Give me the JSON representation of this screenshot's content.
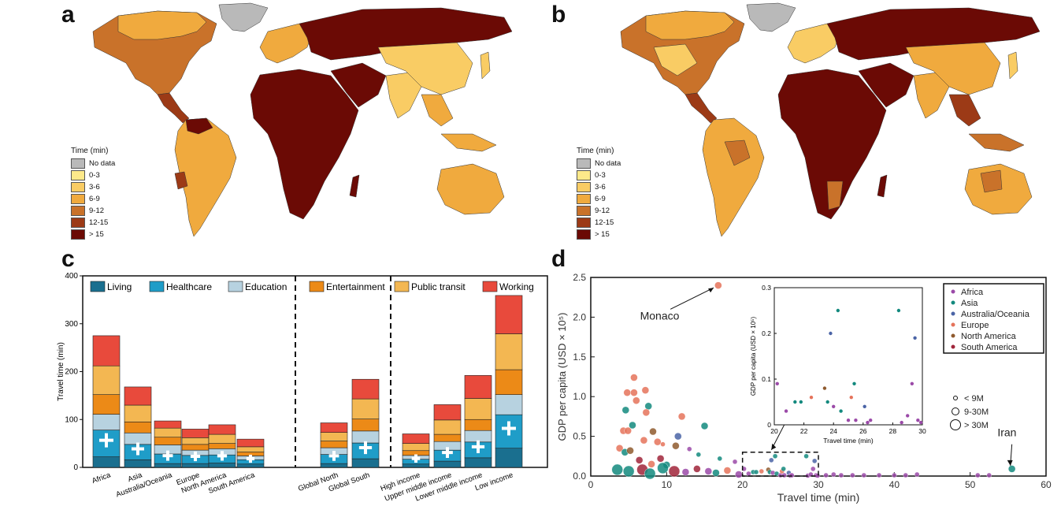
{
  "panels": {
    "a": "a",
    "b": "b",
    "c": "c",
    "d": "d"
  },
  "map_legend": {
    "title": "Time (min)",
    "items": [
      {
        "label": "No data",
        "color": "#b9b9b9"
      },
      {
        "label": "0-3",
        "color": "#fde98a"
      },
      {
        "label": "3-6",
        "color": "#f9cc64"
      },
      {
        "label": "6-9",
        "color": "#f0aa3e"
      },
      {
        "label": "9-12",
        "color": "#c9722a"
      },
      {
        "label": "12-15",
        "color": "#9c3a16"
      },
      {
        "label": "> 15",
        "color": "#6b0a05"
      }
    ]
  },
  "chart_data": [
    {
      "id": "c",
      "type": "bar",
      "stacked": true,
      "ylabel": "Travel time (min)",
      "ylim": [
        0,
        400
      ],
      "yticks": [
        0,
        100,
        200,
        300,
        400
      ],
      "categories": [
        "Africa",
        "Asia",
        "Australia/Oceania",
        "Europe",
        "North America",
        "South America",
        "Global North",
        "Global South",
        "High income",
        "Upper middle income",
        "Lower middle income",
        "Low income"
      ],
      "groups": [
        [
          0,
          5
        ],
        [
          6,
          7
        ],
        [
          8,
          11
        ]
      ],
      "series": [
        {
          "name": "Living",
          "color": "#1a6f8f",
          "values": [
            22,
            16,
            8,
            8,
            9,
            7,
            8,
            18,
            7,
            13,
            20,
            40
          ]
        },
        {
          "name": "Healthcare",
          "color": "#1f9dc8",
          "values": [
            56,
            32,
            20,
            17,
            17,
            9,
            19,
            33,
            10,
            23,
            33,
            70
          ]
        },
        {
          "name": "Education",
          "color": "#b7d2e0",
          "values": [
            33,
            24,
            19,
            11,
            13,
            8,
            14,
            25,
            8,
            18,
            24,
            42
          ]
        },
        {
          "name": "Entertainment",
          "color": "#ec8a17",
          "values": [
            41,
            23,
            16,
            12,
            11,
            8,
            14,
            25,
            10,
            15,
            23,
            52
          ]
        },
        {
          "name": "Public transit",
          "color": "#f3b752",
          "values": [
            60,
            35,
            19,
            14,
            19,
            11,
            18,
            42,
            15,
            30,
            44,
            75
          ]
        },
        {
          "name": "Working",
          "color": "#e84a3c",
          "values": [
            63,
            38,
            15,
            18,
            20,
            16,
            20,
            41,
            20,
            32,
            48,
            80
          ]
        }
      ]
    },
    {
      "id": "d",
      "type": "scatter",
      "xlabel": "Travel time (min)",
      "ylabel": "GDP per capita (USD × 10⁵)",
      "xlim": [
        0,
        60
      ],
      "ylim": [
        0,
        2.5
      ],
      "xticks": [
        0,
        10,
        20,
        30,
        40,
        50,
        60
      ],
      "yticks": [
        0.0,
        0.5,
        1.0,
        1.5,
        2.0,
        2.5
      ],
      "annotations": [
        {
          "text": "Monaco",
          "x": 16.8,
          "y": 2.4
        },
        {
          "text": "Iran",
          "x": 55.5,
          "y": 0.09
        }
      ],
      "regions": [
        {
          "name": "Africa",
          "color": "#9b4aa8"
        },
        {
          "name": "Asia",
          "color": "#13897e"
        },
        {
          "name": "Australia/Oceania",
          "color": "#4a64a6"
        },
        {
          "name": "Europe",
          "color": "#e5735b"
        },
        {
          "name": "North America",
          "color": "#8f5a2e"
        },
        {
          "name": "South America",
          "color": "#a0253a"
        }
      ],
      "size_legend": [
        "< 9M",
        "9-30M",
        "> 30M"
      ],
      "points": [
        {
          "x": 16.8,
          "y": 2.4,
          "r": "Europe",
          "s": 1
        },
        {
          "x": 55.5,
          "y": 0.09,
          "r": "Asia",
          "s": 1
        },
        {
          "x": 5.7,
          "y": 1.24,
          "r": "Europe",
          "s": 1
        },
        {
          "x": 4.8,
          "y": 1.05,
          "r": "Europe",
          "s": 1
        },
        {
          "x": 5.7,
          "y": 1.05,
          "r": "Europe",
          "s": 1
        },
        {
          "x": 7.2,
          "y": 1.08,
          "r": "Europe",
          "s": 1
        },
        {
          "x": 6.0,
          "y": 0.95,
          "r": "Europe",
          "s": 1
        },
        {
          "x": 7.6,
          "y": 0.88,
          "r": "Asia",
          "s": 1
        },
        {
          "x": 7.3,
          "y": 0.8,
          "r": "Europe",
          "s": 1
        },
        {
          "x": 4.6,
          "y": 0.83,
          "r": "Asia",
          "s": 1
        },
        {
          "x": 12.0,
          "y": 0.75,
          "r": "Europe",
          "s": 1
        },
        {
          "x": 15.0,
          "y": 0.63,
          "r": "Asia",
          "s": 1
        },
        {
          "x": 5.5,
          "y": 0.64,
          "r": "Asia",
          "s": 1
        },
        {
          "x": 4.3,
          "y": 0.57,
          "r": "Europe",
          "s": 1
        },
        {
          "x": 4.9,
          "y": 0.57,
          "r": "Europe",
          "s": 1
        },
        {
          "x": 8.2,
          "y": 0.56,
          "r": "North America",
          "s": 1
        },
        {
          "x": 11.5,
          "y": 0.5,
          "r": "Australia/Oceania",
          "s": 1
        },
        {
          "x": 7.0,
          "y": 0.45,
          "r": "Europe",
          "s": 1
        },
        {
          "x": 8.8,
          "y": 0.43,
          "r": "Europe",
          "s": 1
        },
        {
          "x": 9.5,
          "y": 0.4,
          "r": "Europe",
          "s": 0
        },
        {
          "x": 11.2,
          "y": 0.38,
          "r": "North America",
          "s": 1
        },
        {
          "x": 13.0,
          "y": 0.34,
          "r": "Africa",
          "s": 0
        },
        {
          "x": 14.2,
          "y": 0.27,
          "r": "Asia",
          "s": 0
        },
        {
          "x": 17.0,
          "y": 0.22,
          "r": "Asia",
          "s": 0
        },
        {
          "x": 19.0,
          "y": 0.18,
          "r": "Africa",
          "s": 0
        },
        {
          "x": 24.3,
          "y": 0.25,
          "r": "Asia",
          "s": 0
        },
        {
          "x": 3.8,
          "y": 0.35,
          "r": "Europe",
          "s": 1
        },
        {
          "x": 4.5,
          "y": 0.3,
          "r": "Asia",
          "s": 1
        },
        {
          "x": 5.2,
          "y": 0.32,
          "r": "North America",
          "s": 1
        },
        {
          "x": 6.4,
          "y": 0.2,
          "r": "South America",
          "s": 1
        },
        {
          "x": 8.0,
          "y": 0.15,
          "r": "Europe",
          "s": 1
        },
        {
          "x": 9.2,
          "y": 0.22,
          "r": "South America",
          "s": 1
        },
        {
          "x": 10.0,
          "y": 0.14,
          "r": "Asia",
          "s": 1
        },
        {
          "x": 3.5,
          "y": 0.08,
          "r": "Asia",
          "s": 2
        },
        {
          "x": 5.0,
          "y": 0.06,
          "r": "Asia",
          "s": 2
        },
        {
          "x": 6.8,
          "y": 0.08,
          "r": "South America",
          "s": 2
        },
        {
          "x": 7.8,
          "y": 0.03,
          "r": "Asia",
          "s": 2
        },
        {
          "x": 9.5,
          "y": 0.1,
          "r": "Asia",
          "s": 2
        },
        {
          "x": 11.0,
          "y": 0.06,
          "r": "South America",
          "s": 2
        },
        {
          "x": 12.5,
          "y": 0.05,
          "r": "Africa",
          "s": 1
        },
        {
          "x": 14.0,
          "y": 0.09,
          "r": "South America",
          "s": 1
        },
        {
          "x": 15.5,
          "y": 0.06,
          "r": "Africa",
          "s": 1
        },
        {
          "x": 16.5,
          "y": 0.04,
          "r": "Asia",
          "s": 1
        },
        {
          "x": 18.0,
          "y": 0.07,
          "r": "Europe",
          "s": 1
        },
        {
          "x": 19.5,
          "y": 0.02,
          "r": "Africa",
          "s": 1
        },
        {
          "x": 20.2,
          "y": 0.09,
          "r": "Africa",
          "s": 0
        },
        {
          "x": 20.8,
          "y": 0.03,
          "r": "Africa",
          "s": 0
        },
        {
          "x": 21.4,
          "y": 0.05,
          "r": "Asia",
          "s": 0
        },
        {
          "x": 21.8,
          "y": 0.05,
          "r": "Asia",
          "s": 0
        },
        {
          "x": 22.5,
          "y": 0.06,
          "r": "Europe",
          "s": 0
        },
        {
          "x": 23.4,
          "y": 0.08,
          "r": "North America",
          "s": 0
        },
        {
          "x": 23.6,
          "y": 0.05,
          "r": "Asia",
          "s": 0
        },
        {
          "x": 23.8,
          "y": 0.2,
          "r": "Australia/Oceania",
          "s": 0
        },
        {
          "x": 24.0,
          "y": 0.04,
          "r": "Africa",
          "s": 0
        },
        {
          "x": 24.5,
          "y": 0.03,
          "r": "Asia",
          "s": 0
        },
        {
          "x": 25.0,
          "y": 0.01,
          "r": "Africa",
          "s": 0
        },
        {
          "x": 25.2,
          "y": 0.06,
          "r": "Europe",
          "s": 0
        },
        {
          "x": 25.4,
          "y": 0.09,
          "r": "Asia",
          "s": 0
        },
        {
          "x": 25.5,
          "y": 0.01,
          "r": "Africa",
          "s": 0
        },
        {
          "x": 26.1,
          "y": 0.04,
          "r": "Australia/Oceania",
          "s": 0
        },
        {
          "x": 26.3,
          "y": 0.005,
          "r": "Africa",
          "s": 0
        },
        {
          "x": 26.5,
          "y": 0.01,
          "r": "Africa",
          "s": 0
        },
        {
          "x": 28.4,
          "y": 0.25,
          "r": "Asia",
          "s": 0
        },
        {
          "x": 28.6,
          "y": 0.005,
          "r": "Africa",
          "s": 0
        },
        {
          "x": 29.0,
          "y": 0.02,
          "r": "Africa",
          "s": 0
        },
        {
          "x": 29.3,
          "y": 0.09,
          "r": "Africa",
          "s": 0
        },
        {
          "x": 29.5,
          "y": 0.19,
          "r": "Australia/Oceania",
          "s": 0
        },
        {
          "x": 29.7,
          "y": 0.01,
          "r": "Africa",
          "s": 0
        },
        {
          "x": 29.9,
          "y": 0.005,
          "r": "Africa",
          "s": 0
        },
        {
          "x": 31.0,
          "y": 0.01,
          "r": "Africa",
          "s": 0
        },
        {
          "x": 32.0,
          "y": 0.02,
          "r": "Africa",
          "s": 0
        },
        {
          "x": 33.0,
          "y": 0.01,
          "r": "Africa",
          "s": 0
        },
        {
          "x": 34.5,
          "y": 0.01,
          "r": "Africa",
          "s": 0
        },
        {
          "x": 36.0,
          "y": 0.01,
          "r": "Africa",
          "s": 0
        },
        {
          "x": 38.0,
          "y": 0.01,
          "r": "Africa",
          "s": 0
        },
        {
          "x": 40.0,
          "y": 0.01,
          "r": "Africa",
          "s": 0
        },
        {
          "x": 41.5,
          "y": 0.01,
          "r": "Africa",
          "s": 0
        },
        {
          "x": 43.0,
          "y": 0.02,
          "r": "Africa",
          "s": 0
        },
        {
          "x": 51.0,
          "y": 0.01,
          "r": "Africa",
          "s": 0
        },
        {
          "x": 52.5,
          "y": 0.01,
          "r": "Africa",
          "s": 0
        }
      ],
      "inset": {
        "xlabel": "Travel time (min)",
        "ylabel": "GDP per capita (USD × 10⁵)",
        "xlim": [
          20,
          30
        ],
        "ylim": [
          0,
          0.3
        ],
        "xticks": [
          20,
          22,
          24,
          26,
          28,
          30
        ],
        "yticks": [
          0,
          0.1,
          0.2,
          0.3
        ]
      }
    }
  ]
}
